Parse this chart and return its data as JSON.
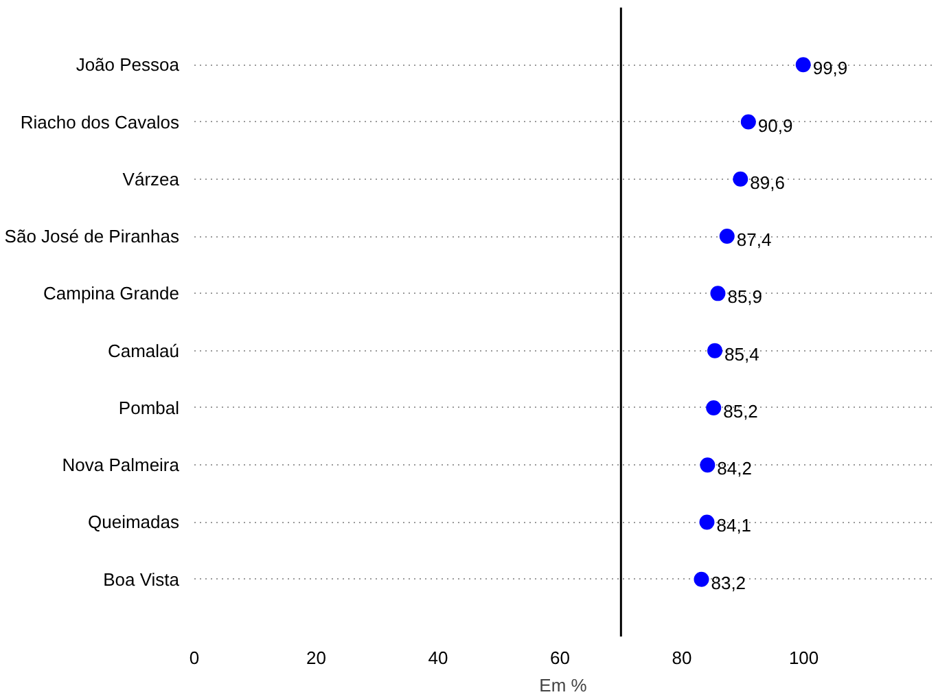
{
  "chart_data": {
    "type": "scatter",
    "orientation": "horizontal",
    "categories": [
      "João Pessoa",
      "Riacho dos Cavalos",
      "Várzea",
      "São José de Piranhas",
      "Campina Grande",
      "Camalaú",
      "Pombal",
      "Nova Palmeira",
      "Queimadas",
      "Boa Vista"
    ],
    "series": [
      {
        "color": "#0000ff",
        "values": [
          99.9,
          90.9,
          89.6,
          87.4,
          85.9,
          85.4,
          85.2,
          84.2,
          84.1,
          83.2
        ],
        "value_labels": [
          "99,9",
          "90,9",
          "89,6",
          "87,4",
          "85,9",
          "85,4",
          "85,2",
          "84,2",
          "84,1",
          "83,2"
        ]
      }
    ],
    "xlim": [
      0,
      121
    ],
    "xticks": [
      0,
      20,
      40,
      60,
      80,
      100
    ],
    "xlabel": "Em %",
    "grid": "y",
    "marker": "circle",
    "ref_lines": [
      {
        "axis": "x",
        "value": 70,
        "color": "#000000"
      }
    ]
  }
}
